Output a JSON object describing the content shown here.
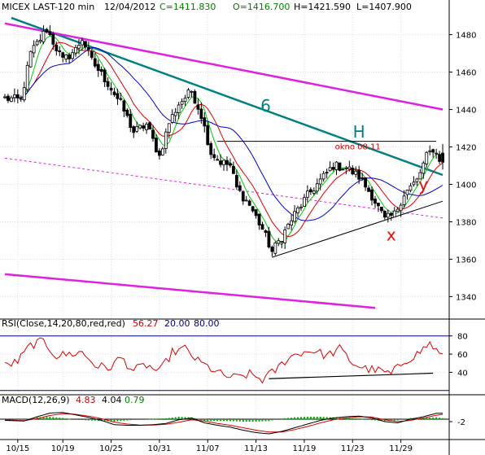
{
  "chart_data": {
    "type": "candlestick",
    "header": {
      "symbol": "MICEX LAST-120 min",
      "date": "12/04/2012",
      "close_label": "C=1411.830",
      "open_label": "O=1416.700",
      "high_label": "H=1421.590",
      "low_label": "L=1407.900"
    },
    "price_axis": {
      "ylim": [
        1328,
        1492
      ],
      "ticks": [
        "1480",
        "1460",
        "1440",
        "1420",
        "1400",
        "1380",
        "1360",
        "1340"
      ],
      "tick_values": [
        1480,
        1460,
        1440,
        1420,
        1400,
        1380,
        1360,
        1340
      ]
    },
    "x_ticks": [
      "10/15",
      "10/19",
      "10/25",
      "10/31",
      "11/07",
      "11/13",
      "11/19",
      "11/23",
      "11/29"
    ],
    "x_tick_index": [
      4,
      18,
      33,
      48,
      63,
      78,
      93,
      108,
      123
    ],
    "num_bars": 137,
    "price_path": [
      [
        0,
        1446
      ],
      [
        5,
        1445
      ],
      [
        8,
        1470
      ],
      [
        13,
        1483
      ],
      [
        18,
        1466
      ],
      [
        22,
        1472
      ],
      [
        24,
        1478
      ],
      [
        27,
        1466
      ],
      [
        32,
        1454
      ],
      [
        36,
        1443
      ],
      [
        40,
        1428
      ],
      [
        44,
        1432
      ],
      [
        48,
        1415
      ],
      [
        51,
        1433
      ],
      [
        54,
        1443
      ],
      [
        58,
        1450
      ],
      [
        61,
        1437
      ],
      [
        64,
        1417
      ],
      [
        67,
        1412
      ],
      [
        70,
        1410
      ],
      [
        72,
        1398
      ],
      [
        76,
        1389
      ],
      [
        80,
        1376
      ],
      [
        83,
        1364
      ],
      [
        86,
        1372
      ],
      [
        90,
        1384
      ],
      [
        94,
        1394
      ],
      [
        98,
        1402
      ],
      [
        102,
        1410
      ],
      [
        106,
        1409
      ],
      [
        110,
        1404
      ],
      [
        114,
        1394
      ],
      [
        118,
        1381
      ],
      [
        121,
        1384
      ],
      [
        124,
        1395
      ],
      [
        128,
        1402
      ],
      [
        131,
        1415
      ],
      [
        133,
        1419
      ],
      [
        136,
        1411
      ]
    ],
    "last_bar": {
      "open": 1416.7,
      "high": 1421.59,
      "low": 1407.9,
      "close": 1411.83
    },
    "moving_averages": [
      {
        "color": "#00cc00",
        "period": 5
      },
      {
        "color": "#dd0000",
        "period": 10
      },
      {
        "color": "#0000cc",
        "period": 21
      }
    ],
    "trend_lines": [
      {
        "label": "6",
        "color": "#008080",
        "points": [
          [
            2,
            1489
          ],
          [
            136,
            1405
          ]
        ]
      },
      {
        "label": "",
        "color": "#e020e0",
        "points": [
          [
            0,
            1486
          ],
          [
            136,
            1440
          ]
        ]
      },
      {
        "label": "",
        "color": "#e020e0",
        "points": [
          [
            0,
            1352
          ],
          [
            115,
            1334
          ]
        ]
      },
      {
        "label": "",
        "color": "#e020e0",
        "dashed": true,
        "points": [
          [
            0,
            1414
          ],
          [
            136,
            1382
          ]
        ]
      },
      {
        "label": "",
        "color": "#000000",
        "points": [
          [
            83,
            1361
          ],
          [
            136,
            1391
          ]
        ]
      }
    ],
    "horizontal_levels": [
      {
        "value": 1423,
        "from": 66,
        "to": 134,
        "label": "okno 08.11"
      }
    ],
    "annotations": [
      {
        "text": "6",
        "x": 81,
        "y": 1439,
        "color": "#008080"
      },
      {
        "text": "H",
        "x": 110,
        "y": 1425,
        "color": "#008080"
      },
      {
        "text": "x",
        "x": 120,
        "y": 1370,
        "color": "#ff0000"
      },
      {
        "text": "y",
        "x": 130,
        "y": 1397,
        "color": "#ff0000"
      }
    ],
    "rsi": {
      "label": "RSI(Close,14,20,80,red,red)",
      "value": "56.27",
      "lower": "20.00",
      "upper": "80.00",
      "ylim": [
        18,
        86
      ],
      "ticks": [
        "80",
        "60",
        "40"
      ],
      "tick_values": [
        80,
        60,
        40
      ],
      "path": [
        [
          0,
          47
        ],
        [
          4,
          52
        ],
        [
          8,
          70
        ],
        [
          12,
          74
        ],
        [
          16,
          58
        ],
        [
          20,
          60
        ],
        [
          24,
          62
        ],
        [
          28,
          48
        ],
        [
          32,
          44
        ],
        [
          36,
          56
        ],
        [
          40,
          42
        ],
        [
          44,
          48
        ],
        [
          48,
          40
        ],
        [
          52,
          62
        ],
        [
          56,
          66
        ],
        [
          60,
          52
        ],
        [
          64,
          44
        ],
        [
          68,
          36
        ],
        [
          72,
          34
        ],
        [
          76,
          38
        ],
        [
          80,
          32
        ],
        [
          84,
          42
        ],
        [
          88,
          56
        ],
        [
          92,
          62
        ],
        [
          96,
          64
        ],
        [
          100,
          58
        ],
        [
          104,
          66
        ],
        [
          108,
          50
        ],
        [
          112,
          44
        ],
        [
          116,
          42
        ],
        [
          120,
          38
        ],
        [
          124,
          52
        ],
        [
          128,
          60
        ],
        [
          132,
          72
        ],
        [
          136,
          56
        ]
      ],
      "trend_line": [
        [
          82,
          33
        ],
        [
          133,
          39
        ]
      ]
    },
    "macd": {
      "label": "MACD(12,26,9)",
      "value": "4.83",
      "signal_value": "4.04",
      "histogram_value": "0.79",
      "ylim": [
        -14,
        10
      ],
      "ticks": [
        "-2"
      ],
      "tick_values": [
        -2
      ],
      "macd_path": [
        [
          0,
          -1
        ],
        [
          6,
          -1.5
        ],
        [
          10,
          2
        ],
        [
          14,
          5
        ],
        [
          18,
          5.5
        ],
        [
          22,
          3.5
        ],
        [
          26,
          1.5
        ],
        [
          30,
          -1
        ],
        [
          34,
          -4.5
        ],
        [
          38,
          -5
        ],
        [
          42,
          -5
        ],
        [
          46,
          -4.5
        ],
        [
          50,
          -3.5
        ],
        [
          54,
          -0.5
        ],
        [
          58,
          1
        ],
        [
          62,
          -3
        ],
        [
          66,
          -5
        ],
        [
          70,
          -6.5
        ],
        [
          74,
          -9
        ],
        [
          78,
          -11
        ],
        [
          82,
          -12
        ],
        [
          86,
          -10
        ],
        [
          90,
          -7
        ],
        [
          94,
          -4
        ],
        [
          98,
          -1
        ],
        [
          102,
          1
        ],
        [
          106,
          2
        ],
        [
          110,
          2.5
        ],
        [
          114,
          1
        ],
        [
          118,
          -2
        ],
        [
          122,
          -3
        ],
        [
          126,
          0
        ],
        [
          130,
          2
        ],
        [
          134,
          4.8
        ],
        [
          136,
          4.8
        ]
      ],
      "signal_path": [
        [
          0,
          -0.5
        ],
        [
          6,
          -1.2
        ],
        [
          10,
          0.5
        ],
        [
          14,
          3
        ],
        [
          18,
          4.5
        ],
        [
          22,
          4
        ],
        [
          26,
          2.5
        ],
        [
          30,
          0.5
        ],
        [
          34,
          -2.5
        ],
        [
          38,
          -4
        ],
        [
          42,
          -4.8
        ],
        [
          46,
          -4.8
        ],
        [
          50,
          -4.2
        ],
        [
          54,
          -2.5
        ],
        [
          58,
          -0.5
        ],
        [
          62,
          -1.5
        ],
        [
          66,
          -3.5
        ],
        [
          70,
          -5
        ],
        [
          74,
          -7
        ],
        [
          78,
          -9
        ],
        [
          82,
          -10.5
        ],
        [
          86,
          -10.5
        ],
        [
          90,
          -8.5
        ],
        [
          94,
          -6
        ],
        [
          98,
          -3
        ],
        [
          102,
          -0.5
        ],
        [
          106,
          1
        ],
        [
          110,
          2
        ],
        [
          114,
          1.8
        ],
        [
          118,
          -0.5
        ],
        [
          122,
          -2
        ],
        [
          126,
          -1
        ],
        [
          130,
          1
        ],
        [
          134,
          3.2
        ],
        [
          136,
          4
        ]
      ]
    }
  },
  "colors": {
    "candles": "#000000",
    "ma_fast": "#00cc00",
    "ma_mid": "#dd0000",
    "ma_slow": "#0000cc",
    "rsi_line": "#dd0000",
    "rsi_bounds": "#000080",
    "macd_line": "#000000",
    "signal_line": "#dd0000",
    "histogram": "#00aa00"
  }
}
